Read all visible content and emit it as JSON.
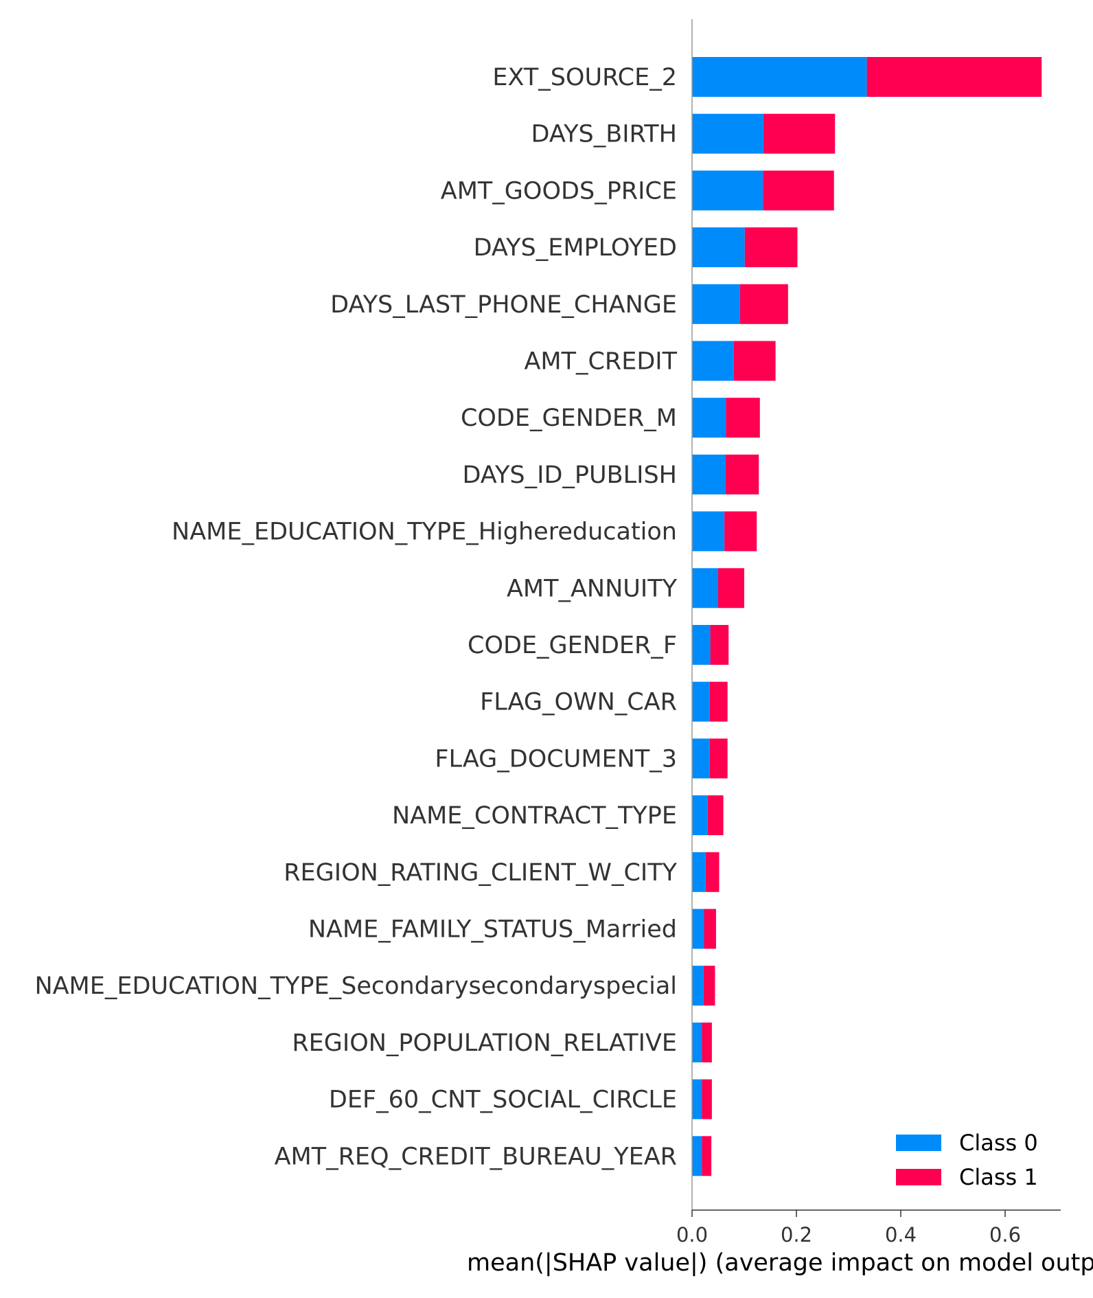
{
  "chart_data": {
    "type": "bar",
    "orientation": "horizontal",
    "stacked": true,
    "xlabel": "mean(|SHAP value|) (average impact on model output magnitude)",
    "xlim": [
      0,
      0.7
    ],
    "xticks": [
      0.0,
      0.2,
      0.4,
      0.6
    ],
    "xtick_labels": [
      "0.0",
      "0.2",
      "0.4",
      "0.6"
    ],
    "grid": false,
    "legend_position": "lower-right",
    "categories": [
      "EXT_SOURCE_2",
      "DAYS_BIRTH",
      "AMT_GOODS_PRICE",
      "DAYS_EMPLOYED",
      "DAYS_LAST_PHONE_CHANGE",
      "AMT_CREDIT",
      "CODE_GENDER_M",
      "DAYS_ID_PUBLISH",
      "NAME_EDUCATION_TYPE_Highereducation",
      "AMT_ANNUITY",
      "CODE_GENDER_F",
      "FLAG_OWN_CAR",
      "FLAG_DOCUMENT_3",
      "NAME_CONTRACT_TYPE",
      "REGION_RATING_CLIENT_W_CITY",
      "NAME_FAMILY_STATUS_Married",
      "NAME_EDUCATION_TYPE_Secondarysecondaryspecial",
      "REGION_POPULATION_RELATIVE",
      "DEF_60_CNT_SOCIAL_CIRCLE",
      "AMT_REQ_CREDIT_BUREAU_YEAR"
    ],
    "series": [
      {
        "name": "Class 0",
        "color": "#008bfb",
        "values": [
          0.335,
          0.137,
          0.136,
          0.101,
          0.092,
          0.08,
          0.065,
          0.064,
          0.062,
          0.05,
          0.035,
          0.034,
          0.034,
          0.03,
          0.026,
          0.023,
          0.022,
          0.019,
          0.019,
          0.019
        ]
      },
      {
        "name": "Class 1",
        "color": "#ff0051",
        "values": [
          0.335,
          0.137,
          0.136,
          0.101,
          0.092,
          0.08,
          0.065,
          0.064,
          0.062,
          0.05,
          0.035,
          0.034,
          0.034,
          0.03,
          0.026,
          0.023,
          0.022,
          0.019,
          0.019,
          0.018
        ]
      }
    ]
  }
}
